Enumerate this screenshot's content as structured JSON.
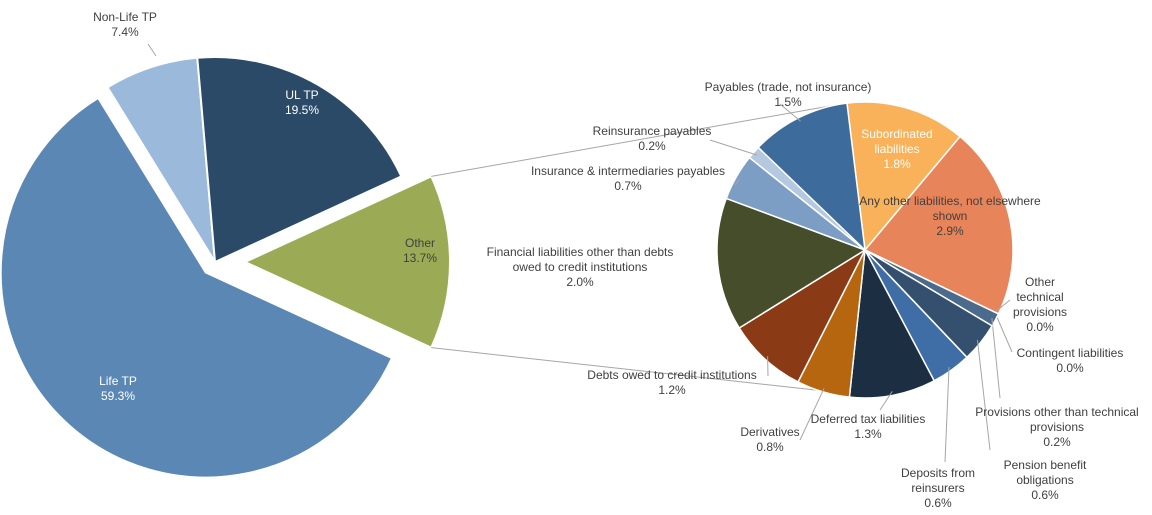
{
  "chart_data": [
    {
      "type": "pie",
      "categories": [
        "Other",
        "Life TP",
        "Non-Life TP",
        "UL TP"
      ],
      "values": [
        13.7,
        59.3,
        7.4,
        19.5
      ],
      "value_labels": [
        "13.7%",
        "59.3%",
        "7.4%",
        "19.5%"
      ],
      "colors": [
        "#9bab55",
        "#5b87b4",
        "#9bb9da",
        "#2b4a68"
      ]
    },
    {
      "type": "pie",
      "categories": [
        "Subordinated liabilities",
        "Any other liabilities, not elsewhere shown",
        "Other technical provisions",
        "Contingent liabilities",
        "Provisions other than technical provisions",
        "Pension benefit obligations",
        "Deposits from reinsurers",
        "Deferred tax liabilities",
        "Derivatives",
        "Debts owed to credit institutions",
        "Financial liabilities other than debts owed to credit institutions",
        "Insurance & intermediaries payables",
        "Reinsurance payables",
        "Payables (trade, not insurance)"
      ],
      "values": [
        1.8,
        2.9,
        0.0,
        0.0,
        0.2,
        0.6,
        0.6,
        1.3,
        0.8,
        1.2,
        2.0,
        0.7,
        0.2,
        1.5
      ],
      "value_labels": [
        "1.8%",
        "2.9%",
        "0.0%",
        "0.0%",
        "0.2%",
        "0.6%",
        "0.6%",
        "1.3%",
        "0.8%",
        "1.2%",
        "2.0%",
        "0.7%",
        "0.2%",
        "1.5%"
      ],
      "colors": [
        "#f9b25a",
        "#e8845a",
        "#7a8c3c",
        "#a6b65a",
        "#4b6a8c",
        "#34506e",
        "#3f6ea6",
        "#1c2e42",
        "#b5660e",
        "#8b3a16",
        "#454d2a",
        "#7d9ec4",
        "#b4c8e0",
        "#3d6c9c"
      ]
    }
  ]
}
